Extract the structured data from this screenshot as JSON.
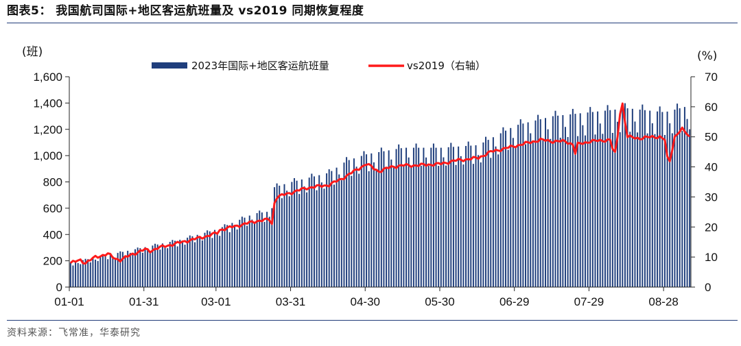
{
  "page": {
    "title": "图表5： 我国航司国际+地区客运航班量及 vs2019 同期恢复程度",
    "source": "资料来源：飞常准，华泰研究"
  },
  "chart_data": {
    "type": "bar",
    "title": "我国航司国际+地区客运航班量及 vs2019 同期恢复程度",
    "x_ticks": [
      "01-01",
      "01-31",
      "03-01",
      "03-31",
      "04-30",
      "05-30",
      "06-29",
      "07-29",
      "08-28"
    ],
    "x_tick_day_index": [
      0,
      30,
      59,
      89,
      119,
      149,
      179,
      209,
      239
    ],
    "num_days": 250,
    "y_left": {
      "unit": "(班)",
      "ticks": [
        "0",
        "200",
        "400",
        "600",
        "800",
        "1,000",
        "1,200",
        "1,400",
        "1,600"
      ],
      "lim": [
        0,
        1600
      ]
    },
    "y_right": {
      "unit": "(%)",
      "ticks": [
        "0",
        "10",
        "20",
        "30",
        "40",
        "50",
        "60",
        "70"
      ],
      "lim": [
        0,
        70
      ]
    },
    "legend_position": "top-center",
    "series": [
      {
        "name": "2023年国际+地区客运航班量",
        "kind": "bar",
        "axis": "left",
        "color": "#1f3e7c",
        "breakpoints": [
          [
            0,
            185
          ],
          [
            14,
            240
          ],
          [
            29,
            300
          ],
          [
            44,
            360
          ],
          [
            59,
            440
          ],
          [
            74,
            560
          ],
          [
            80,
            575
          ],
          [
            81,
            690
          ],
          [
            82,
            760
          ],
          [
            89,
            800
          ],
          [
            104,
            870
          ],
          [
            111,
            960
          ],
          [
            119,
            1010
          ],
          [
            134,
            1060
          ],
          [
            149,
            1060
          ],
          [
            164,
            1080
          ],
          [
            179,
            1230
          ],
          [
            194,
            1300
          ],
          [
            209,
            1330
          ],
          [
            224,
            1360
          ],
          [
            239,
            1330
          ],
          [
            249,
            1380
          ]
        ],
        "weekday_dip": 0.87,
        "weekly_peak": 1.03
      },
      {
        "name": "vs2019（右轴）",
        "kind": "line",
        "axis": "right",
        "color": "#ff1a1a",
        "breakpoints": [
          [
            0,
            8
          ],
          [
            4,
            9
          ],
          [
            6,
            8
          ],
          [
            10,
            10
          ],
          [
            15,
            11
          ],
          [
            18,
            9.5
          ],
          [
            20,
            9
          ],
          [
            25,
            11
          ],
          [
            30,
            12.5
          ],
          [
            32,
            12
          ],
          [
            35,
            13
          ],
          [
            45,
            15
          ],
          [
            55,
            17
          ],
          [
            59,
            18
          ],
          [
            60,
            19
          ],
          [
            65,
            20
          ],
          [
            70,
            21
          ],
          [
            75,
            22
          ],
          [
            80,
            22.5
          ],
          [
            81,
            21
          ],
          [
            82,
            28
          ],
          [
            83,
            30
          ],
          [
            89,
            31.5
          ],
          [
            95,
            33
          ],
          [
            104,
            34
          ],
          [
            109,
            36
          ],
          [
            115,
            39
          ],
          [
            119,
            41
          ],
          [
            121,
            40
          ],
          [
            124,
            38.5
          ],
          [
            129,
            40
          ],
          [
            134,
            40.5
          ],
          [
            139,
            40.5
          ],
          [
            149,
            41
          ],
          [
            154,
            42
          ],
          [
            159,
            42.5
          ],
          [
            164,
            43
          ],
          [
            169,
            45
          ],
          [
            179,
            47
          ],
          [
            184,
            48
          ],
          [
            189,
            49
          ],
          [
            194,
            48.5
          ],
          [
            199,
            48.5
          ],
          [
            202,
            47.5
          ],
          [
            203,
            44.5
          ],
          [
            204,
            47.5
          ],
          [
            209,
            48.5
          ],
          [
            214,
            48.8
          ],
          [
            217,
            49
          ],
          [
            218,
            46
          ],
          [
            219,
            44.5
          ],
          [
            220,
            50
          ],
          [
            221,
            58
          ],
          [
            222,
            61
          ],
          [
            223,
            55
          ],
          [
            224,
            50
          ],
          [
            229,
            49.5
          ],
          [
            234,
            50
          ],
          [
            237,
            50
          ],
          [
            239,
            49
          ],
          [
            240,
            43
          ],
          [
            241,
            42
          ],
          [
            242,
            46
          ],
          [
            243,
            50
          ],
          [
            244,
            51
          ],
          [
            246,
            52.5
          ],
          [
            248,
            51
          ],
          [
            249,
            50
          ]
        ]
      }
    ]
  }
}
